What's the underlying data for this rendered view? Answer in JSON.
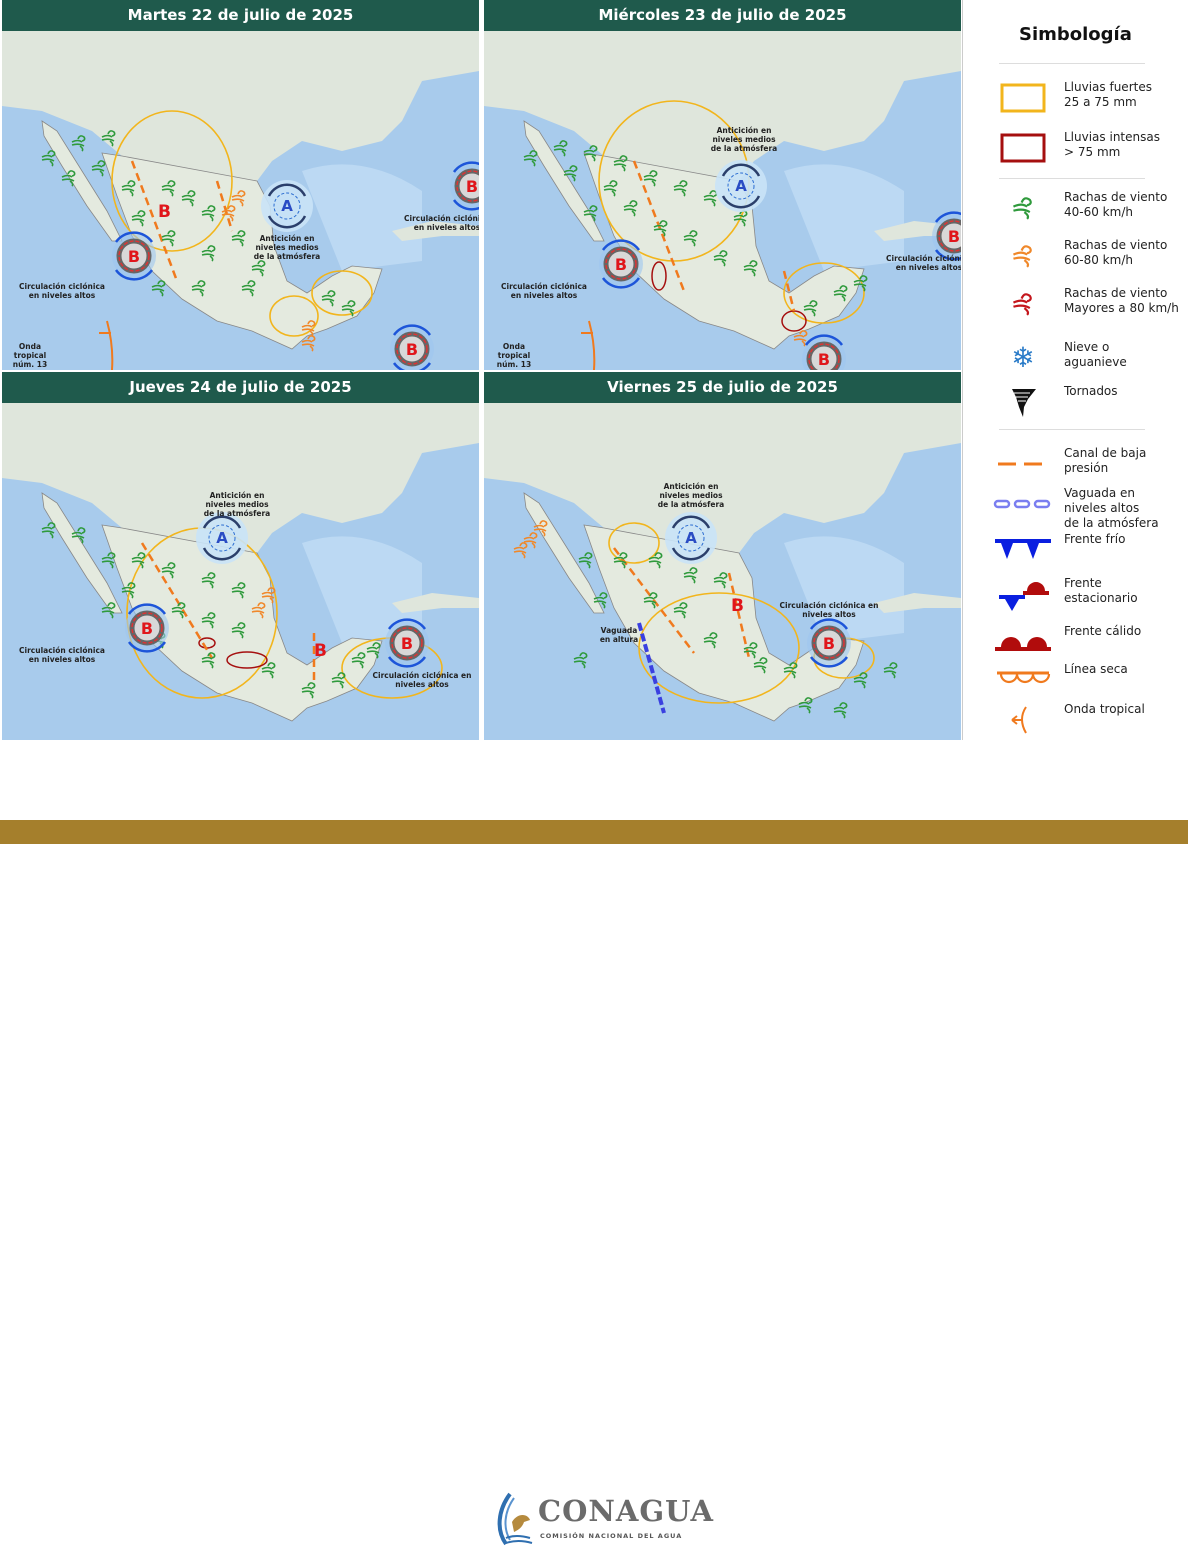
{
  "panels": [
    {
      "title": "Martes 22 de julio de 2025",
      "labels": [
        "Circulación ciclónica\nen niveles altos",
        "Anticición en\nniveles medios\nde la atmósfera",
        "Circulación ciclónica\nen niveles altos",
        "Circulación ciclónica\nen niveles altos",
        "Onda\ntropical\nnúm. 13"
      ],
      "low_marker": "B"
    },
    {
      "title": "Miércoles 23 de julio de 2025",
      "labels": [
        "Circulación ciclónica\nen niveles altos",
        "Anticición en\nniveles medios\nde la atmósfera",
        "Circulación ciclónica\nen niveles altos",
        "Circulación ciclónica en\nniveles altos",
        "Onda\ntropical\nnúm. 13"
      ]
    },
    {
      "title": "Jueves 24 de julio de 2025",
      "labels": [
        "Circulación ciclónica\nen niveles altos",
        "Anticición en\nniveles medios\nde la atmósfera",
        "Circulación ciclónica en\nniveles altos"
      ],
      "low_marker": "B"
    },
    {
      "title": "Viernes 25 de julio de 2025",
      "labels": [
        "Anticición en\nniveles medios\nde la atmósfera",
        "Circulación ciclónica en\nniveles altos",
        "Vaguada\nen altura"
      ],
      "low_marker": "B"
    }
  ],
  "markers": {
    "anticyclone": "A",
    "cyclone": "B"
  },
  "legend": {
    "title": "Simbología",
    "items": [
      {
        "icon": "heavy-rain-box",
        "label": "Lluvias fuertes\n25 a 75 mm"
      },
      {
        "icon": "intense-rain-box",
        "label": "Lluvias intensas\n> 75 mm"
      },
      {
        "icon": "wind-green-icon",
        "label": "Rachas de viento\n40-60 km/h"
      },
      {
        "icon": "wind-orange-icon",
        "label": "Rachas de viento\n60-80 km/h"
      },
      {
        "icon": "wind-red-icon",
        "label": "Rachas de viento\nMayores a 80 km/h"
      },
      {
        "icon": "snowflake-icon",
        "label": "Nieve o\naguanieve"
      },
      {
        "icon": "tornado-icon",
        "label": "Tornados"
      },
      {
        "icon": "low-pressure-trough-icon",
        "label": "Canal de baja\npresión"
      },
      {
        "icon": "upper-trough-icon",
        "label": "Vaguada en\nniveles altos\nde la atmósfera"
      },
      {
        "icon": "cold-front-icon",
        "label": "Frente frío"
      },
      {
        "icon": "stationary-front-icon",
        "label": "Frente\nestacionario"
      },
      {
        "icon": "warm-front-icon",
        "label": "Frente cálido"
      },
      {
        "icon": "dry-line-icon",
        "label": "Línea seca"
      },
      {
        "icon": "tropical-wave-icon",
        "label": "Onda tropical"
      }
    ]
  },
  "colors": {
    "header": "#1f5a4c",
    "heavy_rain": "#f2b51c",
    "intense_rain": "#a50f0f",
    "wind_green": "#2f9a3c",
    "wind_orange": "#f0882a",
    "wind_red": "#c4161c",
    "trough": "#f07a1e",
    "gold_bar": "#a57f2c"
  },
  "footer": {
    "logo_name": "CONAGUA",
    "logo_subtitle": "COMISIÓN NACIONAL DEL AGUA"
  }
}
